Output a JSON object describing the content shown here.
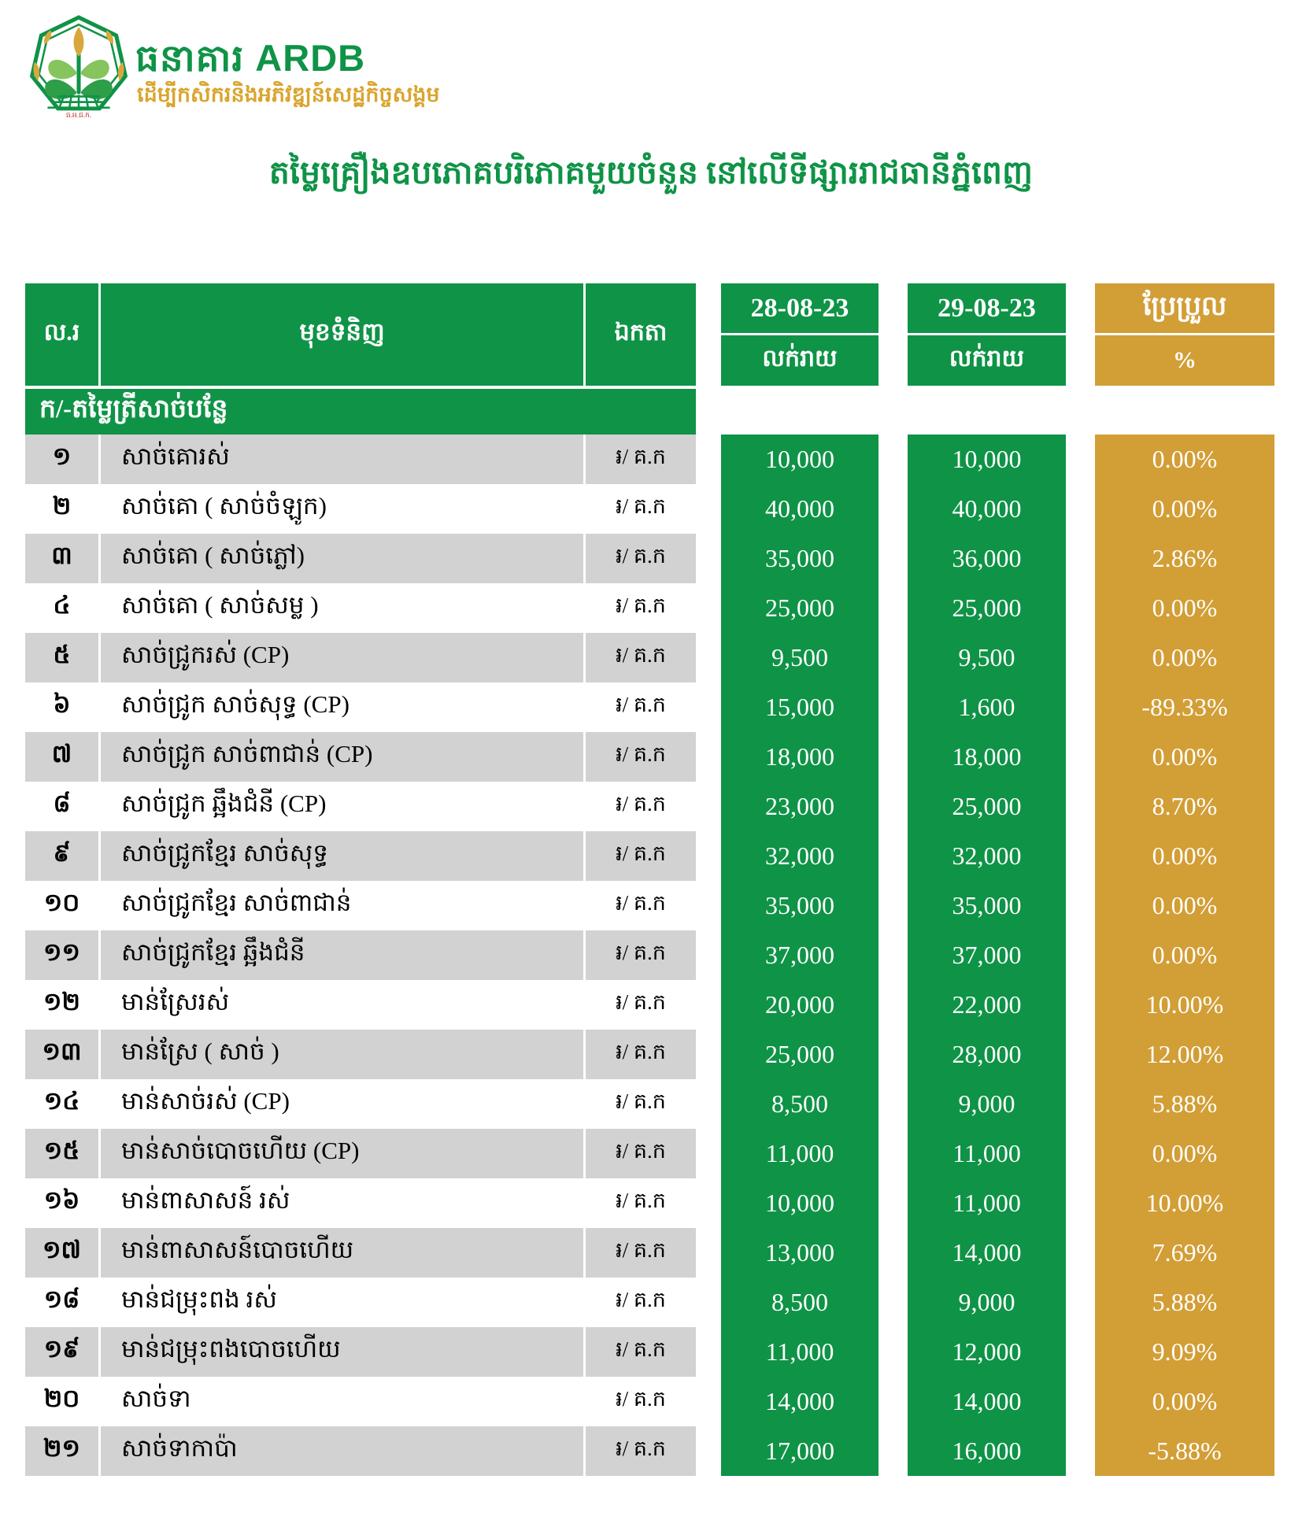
{
  "colors": {
    "brand_green": "#0F9347",
    "gold": "#D29E36",
    "row_gray": "#D2D2D2",
    "slogan_gold": "#D9A52E",
    "leaf_light": "#86C45D",
    "leaf_dark": "#2F9E49",
    "bud_gold": "#D9A83C",
    "logo_acronym_red": "#C2372E"
  },
  "brand": {
    "name": "ធនាគារ ARDB",
    "slogan": "ដើម្បីកសិករនិងអភិវឌ្ឍន៍សេដ្ឋកិច្ចសង្គម",
    "logo_acronym": "ធ.អ.ជ.ក."
  },
  "title": "តម្លៃគ្រឿងឧបភោគបរិភោគមួយចំនួន នៅលើទីផ្សាររាជធានីភ្នំពេញ",
  "table": {
    "headers": {
      "no": "ល.រ",
      "item": "មុខទំនិញ",
      "unit": "ឯកតា",
      "date1": "28-08-23",
      "retail1": "លក់រាយ",
      "date2": "29-08-23",
      "retail2": "លក់រាយ",
      "change": "ប្រែប្រួល",
      "percent_symbol": "%"
    },
    "section_header": "ក/-តម្លៃត្រីសាច់បន្លែ",
    "rows": [
      {
        "no": "១",
        "item": "សាច់គោរស់",
        "unit": "៛/ គ.ក",
        "price_28": "10,000",
        "price_29": "10,000",
        "change": "0.00%"
      },
      {
        "no": "២",
        "item": "សាច់គោ ( សាច់ចំឡូក)",
        "unit": "៛/ គ.ក",
        "price_28": "40,000",
        "price_29": "40,000",
        "change": "0.00%"
      },
      {
        "no": "៣",
        "item": "សាច់គោ ( សាច់ភ្លៅ)",
        "unit": "៛/ គ.ក",
        "price_28": "35,000",
        "price_29": "36,000",
        "change": "2.86%"
      },
      {
        "no": "៤",
        "item": "សាច់គោ ( សាច់សម្ល )",
        "unit": "៛/ គ.ក",
        "price_28": "25,000",
        "price_29": "25,000",
        "change": "0.00%"
      },
      {
        "no": "៥",
        "item": "សាច់ជ្រូករស់ (CP)",
        "unit": "៛/ គ.ក",
        "price_28": "9,500",
        "price_29": "9,500",
        "change": "0.00%"
      },
      {
        "no": "៦",
        "item": "សាច់ជ្រូក សាច់សុទ្ធ (CP)",
        "unit": "៛/ គ.ក",
        "price_28": "15,000",
        "price_29": "1,600",
        "change": "-89.33%"
      },
      {
        "no": "៧",
        "item": "សាច់ជ្រូក សាច់ពាជាន់ (CP)",
        "unit": "៛/ គ.ក",
        "price_28": "18,000",
        "price_29": "18,000",
        "change": "0.00%"
      },
      {
        "no": "៨",
        "item": "សាច់ជ្រូក ឆ្អឹងជំនី (CP)",
        "unit": "៛/ គ.ក",
        "price_28": "23,000",
        "price_29": "25,000",
        "change": "8.70%"
      },
      {
        "no": "៩",
        "item": "សាច់ជ្រូកខ្មែរ សាច់សុទ្ធ",
        "unit": "៛/ គ.ក",
        "price_28": "32,000",
        "price_29": "32,000",
        "change": "0.00%"
      },
      {
        "no": "១០",
        "item": "សាច់ជ្រូកខ្មែរ សាច់ពាជាន់",
        "unit": "៛/ គ.ក",
        "price_28": "35,000",
        "price_29": "35,000",
        "change": "0.00%"
      },
      {
        "no": "១១",
        "item": "សាច់ជ្រូកខ្មែរ ឆ្អឹងជំនី",
        "unit": "៛/ គ.ក",
        "price_28": "37,000",
        "price_29": "37,000",
        "change": "0.00%"
      },
      {
        "no": "១២",
        "item": "មាន់ស្រែរស់",
        "unit": "៛/ គ.ក",
        "price_28": "20,000",
        "price_29": "22,000",
        "change": "10.00%"
      },
      {
        "no": "១៣",
        "item": "មាន់ស្រែ ( សាច់ )",
        "unit": "៛/ គ.ក",
        "price_28": "25,000",
        "price_29": "28,000",
        "change": "12.00%"
      },
      {
        "no": "១៤",
        "item": "មាន់សាច់រស់ (CP)",
        "unit": "៛/ គ.ក",
        "price_28": "8,500",
        "price_29": "9,000",
        "change": "5.88%"
      },
      {
        "no": "១៥",
        "item": "មាន់សាច់បោចហើយ (CP)",
        "unit": "៛/ គ.ក",
        "price_28": "11,000",
        "price_29": "11,000",
        "change": "0.00%"
      },
      {
        "no": "១៦",
        "item": "មាន់ពាសាសន៍ រស់",
        "unit": "៛/ គ.ក",
        "price_28": "10,000",
        "price_29": "11,000",
        "change": "10.00%"
      },
      {
        "no": "១៧",
        "item": "មាន់ពាសាសន៍បោចហើយ",
        "unit": "៛/ គ.ក",
        "price_28": "13,000",
        "price_29": "14,000",
        "change": "7.69%"
      },
      {
        "no": "១៨",
        "item": "មាន់ជម្រុះពង រស់",
        "unit": "៛/ គ.ក",
        "price_28": "8,500",
        "price_29": "9,000",
        "change": "5.88%"
      },
      {
        "no": "១៩",
        "item": "មាន់ជម្រុះពងបោចហើយ",
        "unit": "៛/ គ.ក",
        "price_28": "11,000",
        "price_29": "12,000",
        "change": "9.09%"
      },
      {
        "no": "២០",
        "item": "សាច់ទា",
        "unit": "៛/ គ.ក",
        "price_28": "14,000",
        "price_29": "14,000",
        "change": "0.00%"
      },
      {
        "no": "២១",
        "item": "សាច់ទាកាប៉ា",
        "unit": "៛/ គ.ក",
        "price_28": "17,000",
        "price_29": "16,000",
        "change": "-5.88%"
      }
    ]
  }
}
